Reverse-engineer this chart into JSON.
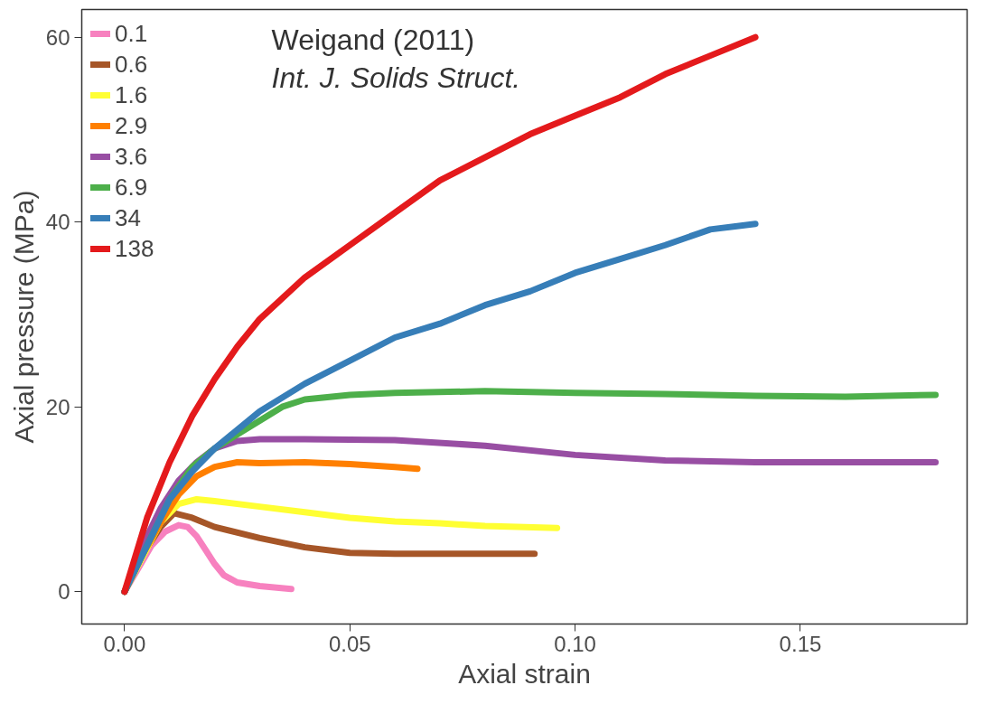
{
  "chart_data": {
    "type": "line",
    "xlabel": "Axial strain",
    "ylabel": "Axial pressure (MPa)",
    "annotations": [
      "Weigand (2011)",
      "Int. J. Solids Struct."
    ],
    "xlim": [
      -0.0095,
      0.187
    ],
    "ylim": [
      -3.5,
      63
    ],
    "xticks": [
      {
        "value": 0,
        "label": "0.00"
      },
      {
        "value": 0.05,
        "label": "0.05"
      },
      {
        "value": 0.1,
        "label": "0.10"
      },
      {
        "value": 0.15,
        "label": "0.15"
      }
    ],
    "yticks": [
      0,
      20,
      40,
      60
    ],
    "grid": false,
    "legend": "top left",
    "line_style": "solid",
    "marker": "none",
    "series": [
      {
        "name": "0.1",
        "color": "#f781bf",
        "x": [
          0,
          0.003,
          0.006,
          0.009,
          0.012,
          0.014,
          0.016,
          0.018,
          0.02,
          0.022,
          0.025,
          0.03,
          0.037
        ],
        "values": [
          0,
          2.5,
          5,
          6.5,
          7.2,
          7,
          6,
          4.5,
          3,
          1.8,
          1.0,
          0.6,
          0.3
        ]
      },
      {
        "name": "0.6",
        "color": "#a65628",
        "x": [
          0,
          0.004,
          0.008,
          0.011,
          0.015,
          0.02,
          0.03,
          0.04,
          0.05,
          0.06,
          0.07,
          0.08,
          0.091
        ],
        "values": [
          0,
          4,
          7,
          8.5,
          8,
          7,
          5.8,
          4.8,
          4.2,
          4.1,
          4.1,
          4.1,
          4.1
        ]
      },
      {
        "name": "1.6",
        "color": "#ffff33",
        "x": [
          0,
          0.008,
          0.012,
          0.016,
          0.02,
          0.03,
          0.04,
          0.05,
          0.06,
          0.07,
          0.08,
          0.096
        ],
        "values": [
          0,
          7.5,
          9.5,
          10,
          9.8,
          9.2,
          8.6,
          8.0,
          7.6,
          7.4,
          7.1,
          6.9
        ]
      },
      {
        "name": "2.9",
        "color": "#ff7f00",
        "x": [
          0,
          0.004,
          0.008,
          0.012,
          0.016,
          0.02,
          0.025,
          0.03,
          0.04,
          0.05,
          0.06,
          0.065
        ],
        "values": [
          0,
          4,
          7.5,
          10.5,
          12.5,
          13.5,
          14,
          13.9,
          14,
          13.8,
          13.5,
          13.3
        ]
      },
      {
        "name": "3.6",
        "color": "#984ea3",
        "x": [
          0,
          0.004,
          0.008,
          0.012,
          0.016,
          0.02,
          0.025,
          0.03,
          0.04,
          0.06,
          0.08,
          0.1,
          0.12,
          0.14,
          0.16,
          0.18
        ],
        "values": [
          0,
          5,
          9,
          12,
          14,
          15.5,
          16.3,
          16.5,
          16.5,
          16.4,
          15.8,
          14.8,
          14.2,
          14.0,
          14.0,
          14.0
        ]
      },
      {
        "name": "6.9",
        "color": "#4daf4a",
        "x": [
          0,
          0.005,
          0.01,
          0.015,
          0.02,
          0.025,
          0.03,
          0.035,
          0.04,
          0.05,
          0.06,
          0.08,
          0.1,
          0.12,
          0.14,
          0.16,
          0.18
        ],
        "values": [
          0,
          5,
          10,
          13.5,
          15.5,
          17,
          18.5,
          20,
          20.8,
          21.3,
          21.5,
          21.7,
          21.5,
          21.4,
          21.2,
          21.1,
          21.3
        ]
      },
      {
        "name": "34",
        "color": "#377eb8",
        "x": [
          0,
          0.005,
          0.01,
          0.015,
          0.02,
          0.025,
          0.03,
          0.04,
          0.05,
          0.06,
          0.07,
          0.08,
          0.09,
          0.1,
          0.11,
          0.12,
          0.13,
          0.14
        ],
        "values": [
          0,
          5,
          10,
          13,
          15.5,
          17.5,
          19.5,
          22.5,
          25,
          27.5,
          29,
          31,
          32.5,
          34.5,
          36,
          37.5,
          39.2,
          39.8
        ]
      },
      {
        "name": "138",
        "color": "#e41a1c",
        "x": [
          0,
          0.005,
          0.01,
          0.015,
          0.02,
          0.025,
          0.03,
          0.04,
          0.05,
          0.06,
          0.07,
          0.08,
          0.09,
          0.1,
          0.11,
          0.12,
          0.13,
          0.14
        ],
        "values": [
          0,
          8,
          14,
          19,
          23,
          26.5,
          29.5,
          34,
          37.5,
          41,
          44.5,
          47,
          49.5,
          51.5,
          53.5,
          56,
          58,
          60
        ]
      }
    ]
  }
}
